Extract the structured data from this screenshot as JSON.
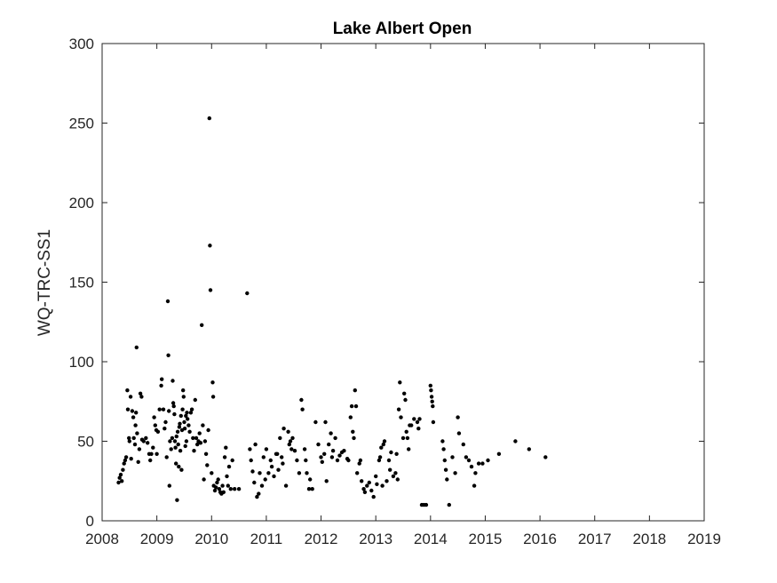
{
  "chart_data": {
    "type": "scatter",
    "title": "Lake Albert Open",
    "xlabel": "",
    "ylabel": "WQ-TRC-SS1",
    "xlim": [
      2008,
      2019
    ],
    "ylim": [
      0,
      300
    ],
    "xticks": [
      "2008",
      "2009",
      "2010",
      "2011",
      "2012",
      "2013",
      "2014",
      "2015",
      "2016",
      "2017",
      "2018",
      "2019"
    ],
    "yticks": [
      "0",
      "50",
      "100",
      "150",
      "200",
      "250",
      "300"
    ],
    "grid": false,
    "marker_color": "#000000",
    "series": [
      {
        "name": "WQ-TRC-SS1",
        "points": [
          [
            2008.3,
            24
          ],
          [
            2008.32,
            27
          ],
          [
            2008.34,
            29
          ],
          [
            2008.36,
            25
          ],
          [
            2008.38,
            32
          ],
          [
            2008.4,
            36
          ],
          [
            2008.42,
            38
          ],
          [
            2008.44,
            40
          ],
          [
            2008.46,
            82
          ],
          [
            2008.47,
            70
          ],
          [
            2008.49,
            52
          ],
          [
            2008.5,
            50
          ],
          [
            2008.52,
            78
          ],
          [
            2008.53,
            39
          ],
          [
            2008.55,
            69
          ],
          [
            2008.57,
            65
          ],
          [
            2008.58,
            52
          ],
          [
            2008.6,
            48
          ],
          [
            2008.61,
            60
          ],
          [
            2008.62,
            68
          ],
          [
            2008.63,
            109
          ],
          [
            2008.64,
            55
          ],
          [
            2008.66,
            37
          ],
          [
            2008.68,
            45
          ],
          [
            2008.7,
            80
          ],
          [
            2008.72,
            78
          ],
          [
            2008.73,
            51
          ],
          [
            2008.76,
            50
          ],
          [
            2008.8,
            52
          ],
          [
            2008.83,
            49
          ],
          [
            2008.86,
            42
          ],
          [
            2008.88,
            38
          ],
          [
            2008.9,
            42
          ],
          [
            2008.93,
            46
          ],
          [
            2008.95,
            65
          ],
          [
            2008.97,
            60
          ],
          [
            2008.99,
            57
          ],
          [
            2009.0,
            42
          ],
          [
            2009.02,
            56
          ],
          [
            2009.05,
            70
          ],
          [
            2009.08,
            85
          ],
          [
            2009.09,
            89
          ],
          [
            2009.12,
            70
          ],
          [
            2009.14,
            58
          ],
          [
            2009.16,
            62
          ],
          [
            2009.18,
            40
          ],
          [
            2009.2,
            138
          ],
          [
            2009.21,
            104
          ],
          [
            2009.22,
            69
          ],
          [
            2009.23,
            22
          ],
          [
            2009.24,
            50
          ],
          [
            2009.26,
            45
          ],
          [
            2009.28,
            52
          ],
          [
            2009.29,
            88
          ],
          [
            2009.3,
            74
          ],
          [
            2009.31,
            72
          ],
          [
            2009.32,
            67
          ],
          [
            2009.33,
            50
          ],
          [
            2009.34,
            46
          ],
          [
            2009.35,
            36
          ],
          [
            2009.36,
            53
          ],
          [
            2009.37,
            13
          ],
          [
            2009.38,
            56
          ],
          [
            2009.39,
            48
          ],
          [
            2009.4,
            34
          ],
          [
            2009.41,
            59
          ],
          [
            2009.42,
            61
          ],
          [
            2009.43,
            44
          ],
          [
            2009.44,
            66
          ],
          [
            2009.45,
            32
          ],
          [
            2009.46,
            57
          ],
          [
            2009.47,
            70
          ],
          [
            2009.48,
            82
          ],
          [
            2009.49,
            78
          ],
          [
            2009.5,
            62
          ],
          [
            2009.51,
            58
          ],
          [
            2009.52,
            47
          ],
          [
            2009.53,
            66
          ],
          [
            2009.54,
            50
          ],
          [
            2009.55,
            68
          ],
          [
            2009.56,
            64
          ],
          [
            2009.58,
            60
          ],
          [
            2009.6,
            56
          ],
          [
            2009.62,
            68
          ],
          [
            2009.64,
            70
          ],
          [
            2009.66,
            52
          ],
          [
            2009.68,
            44
          ],
          [
            2009.7,
            76
          ],
          [
            2009.72,
            52
          ],
          [
            2009.74,
            48
          ],
          [
            2009.76,
            50
          ],
          [
            2009.78,
            55
          ],
          [
            2009.8,
            49
          ],
          [
            2009.82,
            123
          ],
          [
            2009.84,
            60
          ],
          [
            2009.86,
            26
          ],
          [
            2009.88,
            50
          ],
          [
            2009.9,
            42
          ],
          [
            2009.92,
            35
          ],
          [
            2009.94,
            57
          ],
          [
            2009.96,
            253
          ],
          [
            2009.97,
            173
          ],
          [
            2009.98,
            145
          ],
          [
            2010.0,
            30
          ],
          [
            2010.02,
            87
          ],
          [
            2010.03,
            78
          ],
          [
            2010.04,
            22
          ],
          [
            2010.06,
            19
          ],
          [
            2010.08,
            21
          ],
          [
            2010.1,
            24
          ],
          [
            2010.12,
            26
          ],
          [
            2010.14,
            20
          ],
          [
            2010.16,
            18
          ],
          [
            2010.18,
            17
          ],
          [
            2010.2,
            22
          ],
          [
            2010.22,
            18
          ],
          [
            2010.24,
            40
          ],
          [
            2010.26,
            46
          ],
          [
            2010.28,
            28
          ],
          [
            2010.3,
            22
          ],
          [
            2010.32,
            34
          ],
          [
            2010.35,
            20
          ],
          [
            2010.38,
            38
          ],
          [
            2010.42,
            20
          ],
          [
            2010.5,
            20
          ],
          [
            2010.65,
            143
          ],
          [
            2010.7,
            45
          ],
          [
            2010.72,
            38
          ],
          [
            2010.75,
            31
          ],
          [
            2010.78,
            24
          ],
          [
            2010.8,
            48
          ],
          [
            2010.83,
            15
          ],
          [
            2010.86,
            17
          ],
          [
            2010.88,
            30
          ],
          [
            2010.92,
            22
          ],
          [
            2010.95,
            40
          ],
          [
            2010.98,
            26
          ],
          [
            2011.0,
            45
          ],
          [
            2011.04,
            30
          ],
          [
            2011.08,
            38
          ],
          [
            2011.1,
            34
          ],
          [
            2011.14,
            28
          ],
          [
            2011.18,
            42
          ],
          [
            2011.2,
            42
          ],
          [
            2011.22,
            32
          ],
          [
            2011.25,
            52
          ],
          [
            2011.28,
            40
          ],
          [
            2011.3,
            36
          ],
          [
            2011.32,
            58
          ],
          [
            2011.36,
            22
          ],
          [
            2011.4,
            56
          ],
          [
            2011.42,
            48
          ],
          [
            2011.44,
            50
          ],
          [
            2011.46,
            45
          ],
          [
            2011.48,
            52
          ],
          [
            2011.52,
            44
          ],
          [
            2011.56,
            38
          ],
          [
            2011.6,
            30
          ],
          [
            2011.64,
            76
          ],
          [
            2011.66,
            70
          ],
          [
            2011.7,
            45
          ],
          [
            2011.72,
            38
          ],
          [
            2011.74,
            30
          ],
          [
            2011.78,
            20
          ],
          [
            2011.8,
            26
          ],
          [
            2011.84,
            20
          ],
          [
            2011.9,
            62
          ],
          [
            2011.95,
            48
          ],
          [
            2012.0,
            40
          ],
          [
            2012.02,
            37
          ],
          [
            2012.06,
            42
          ],
          [
            2012.08,
            62
          ],
          [
            2012.1,
            25
          ],
          [
            2012.14,
            48
          ],
          [
            2012.18,
            55
          ],
          [
            2012.2,
            40
          ],
          [
            2012.22,
            44
          ],
          [
            2012.26,
            52
          ],
          [
            2012.3,
            38
          ],
          [
            2012.34,
            41
          ],
          [
            2012.38,
            43
          ],
          [
            2012.42,
            44
          ],
          [
            2012.48,
            39
          ],
          [
            2012.5,
            38
          ],
          [
            2012.54,
            65
          ],
          [
            2012.56,
            72
          ],
          [
            2012.58,
            56
          ],
          [
            2012.6,
            52
          ],
          [
            2012.62,
            82
          ],
          [
            2012.64,
            72
          ],
          [
            2012.66,
            30
          ],
          [
            2012.7,
            36
          ],
          [
            2012.72,
            38
          ],
          [
            2012.74,
            25
          ],
          [
            2012.78,
            20
          ],
          [
            2012.8,
            18
          ],
          [
            2012.84,
            22
          ],
          [
            2012.88,
            24
          ],
          [
            2012.92,
            19
          ],
          [
            2012.96,
            15
          ],
          [
            2013.0,
            28
          ],
          [
            2013.02,
            23
          ],
          [
            2013.06,
            38
          ],
          [
            2013.08,
            40
          ],
          [
            2013.1,
            46
          ],
          [
            2013.12,
            22
          ],
          [
            2013.14,
            48
          ],
          [
            2013.16,
            50
          ],
          [
            2013.2,
            25
          ],
          [
            2013.24,
            38
          ],
          [
            2013.26,
            32
          ],
          [
            2013.28,
            43
          ],
          [
            2013.32,
            28
          ],
          [
            2013.36,
            30
          ],
          [
            2013.38,
            42
          ],
          [
            2013.4,
            26
          ],
          [
            2013.42,
            70
          ],
          [
            2013.44,
            87
          ],
          [
            2013.46,
            65
          ],
          [
            2013.5,
            52
          ],
          [
            2013.52,
            80
          ],
          [
            2013.54,
            76
          ],
          [
            2013.56,
            56
          ],
          [
            2013.58,
            52
          ],
          [
            2013.6,
            45
          ],
          [
            2013.62,
            60
          ],
          [
            2013.65,
            60
          ],
          [
            2013.7,
            64
          ],
          [
            2013.76,
            62
          ],
          [
            2013.78,
            58
          ],
          [
            2013.8,
            64
          ],
          [
            2013.84,
            10
          ],
          [
            2013.88,
            10
          ],
          [
            2013.92,
            10
          ],
          [
            2014.0,
            85
          ],
          [
            2014.01,
            82
          ],
          [
            2014.02,
            78
          ],
          [
            2014.03,
            75
          ],
          [
            2014.04,
            72
          ],
          [
            2014.05,
            62
          ],
          [
            2014.22,
            50
          ],
          [
            2014.24,
            45
          ],
          [
            2014.26,
            38
          ],
          [
            2014.28,
            32
          ],
          [
            2014.3,
            26
          ],
          [
            2014.34,
            10
          ],
          [
            2014.4,
            40
          ],
          [
            2014.45,
            30
          ],
          [
            2014.5,
            65
          ],
          [
            2014.52,
            55
          ],
          [
            2014.6,
            48
          ],
          [
            2014.65,
            40
          ],
          [
            2014.7,
            38
          ],
          [
            2014.75,
            34
          ],
          [
            2014.8,
            22
          ],
          [
            2014.82,
            30
          ],
          [
            2014.88,
            36
          ],
          [
            2014.95,
            36
          ],
          [
            2015.05,
            38
          ],
          [
            2015.25,
            42
          ],
          [
            2015.55,
            50
          ],
          [
            2015.8,
            45
          ],
          [
            2016.1,
            40
          ]
        ]
      }
    ]
  }
}
